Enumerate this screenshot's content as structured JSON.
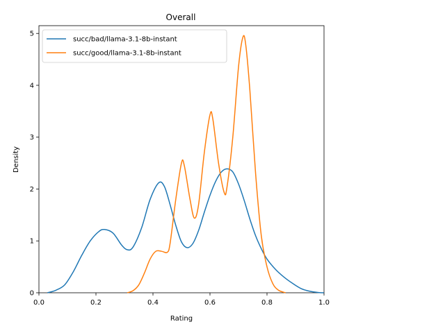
{
  "chart_data": {
    "type": "line",
    "title": "Overall",
    "xlabel": "Rating",
    "ylabel": "Density",
    "xlim": [
      0.0,
      1.0
    ],
    "ylim": [
      0,
      5.15
    ],
    "xticks": [
      0.0,
      0.2,
      0.4,
      0.6,
      0.8,
      1.0
    ],
    "xtick_labels": [
      "0.0",
      "0.2",
      "0.4",
      "0.6",
      "0.8",
      "1.0"
    ],
    "yticks": [
      0,
      1,
      2,
      3,
      4,
      5
    ],
    "ytick_labels": [
      "0",
      "1",
      "2",
      "3",
      "4",
      "5"
    ],
    "grid": false,
    "legend_position": "top-left",
    "series": [
      {
        "name": "succ/bad/llama-3.1-8b-instant",
        "color": "#1f77b4",
        "points": [
          [
            0.03,
            0.0
          ],
          [
            0.06,
            0.05
          ],
          [
            0.09,
            0.15
          ],
          [
            0.12,
            0.4
          ],
          [
            0.15,
            0.72
          ],
          [
            0.18,
            1.0
          ],
          [
            0.21,
            1.18
          ],
          [
            0.23,
            1.22
          ],
          [
            0.26,
            1.15
          ],
          [
            0.29,
            0.92
          ],
          [
            0.31,
            0.83
          ],
          [
            0.33,
            0.88
          ],
          [
            0.36,
            1.25
          ],
          [
            0.39,
            1.8
          ],
          [
            0.42,
            2.12
          ],
          [
            0.44,
            2.05
          ],
          [
            0.46,
            1.7
          ],
          [
            0.48,
            1.3
          ],
          [
            0.5,
            0.98
          ],
          [
            0.52,
            0.87
          ],
          [
            0.54,
            0.95
          ],
          [
            0.56,
            1.2
          ],
          [
            0.58,
            1.55
          ],
          [
            0.6,
            1.88
          ],
          [
            0.62,
            2.15
          ],
          [
            0.64,
            2.33
          ],
          [
            0.66,
            2.39
          ],
          [
            0.68,
            2.33
          ],
          [
            0.7,
            2.1
          ],
          [
            0.72,
            1.78
          ],
          [
            0.74,
            1.42
          ],
          [
            0.76,
            1.1
          ],
          [
            0.78,
            0.85
          ],
          [
            0.8,
            0.65
          ],
          [
            0.83,
            0.45
          ],
          [
            0.86,
            0.3
          ],
          [
            0.89,
            0.18
          ],
          [
            0.92,
            0.08
          ],
          [
            0.95,
            0.03
          ],
          [
            0.98,
            0.005
          ],
          [
            1.0,
            0.0
          ]
        ]
      },
      {
        "name": "succ/good/llama-3.1-8b-instant",
        "color": "#ff7f0e",
        "points": [
          [
            0.31,
            0.0
          ],
          [
            0.33,
            0.04
          ],
          [
            0.35,
            0.15
          ],
          [
            0.37,
            0.38
          ],
          [
            0.39,
            0.65
          ],
          [
            0.41,
            0.8
          ],
          [
            0.43,
            0.8
          ],
          [
            0.45,
            0.78
          ],
          [
            0.46,
            0.95
          ],
          [
            0.48,
            1.8
          ],
          [
            0.5,
            2.5
          ],
          [
            0.51,
            2.45
          ],
          [
            0.53,
            1.8
          ],
          [
            0.545,
            1.44
          ],
          [
            0.56,
            1.7
          ],
          [
            0.58,
            2.7
          ],
          [
            0.6,
            3.43
          ],
          [
            0.61,
            3.35
          ],
          [
            0.63,
            2.5
          ],
          [
            0.65,
            1.93
          ],
          [
            0.66,
            2.05
          ],
          [
            0.68,
            3.0
          ],
          [
            0.7,
            4.35
          ],
          [
            0.715,
            4.92
          ],
          [
            0.725,
            4.8
          ],
          [
            0.74,
            3.9
          ],
          [
            0.76,
            2.3
          ],
          [
            0.78,
            1.1
          ],
          [
            0.8,
            0.5
          ],
          [
            0.82,
            0.18
          ],
          [
            0.84,
            0.05
          ],
          [
            0.865,
            0.0
          ]
        ]
      }
    ]
  }
}
